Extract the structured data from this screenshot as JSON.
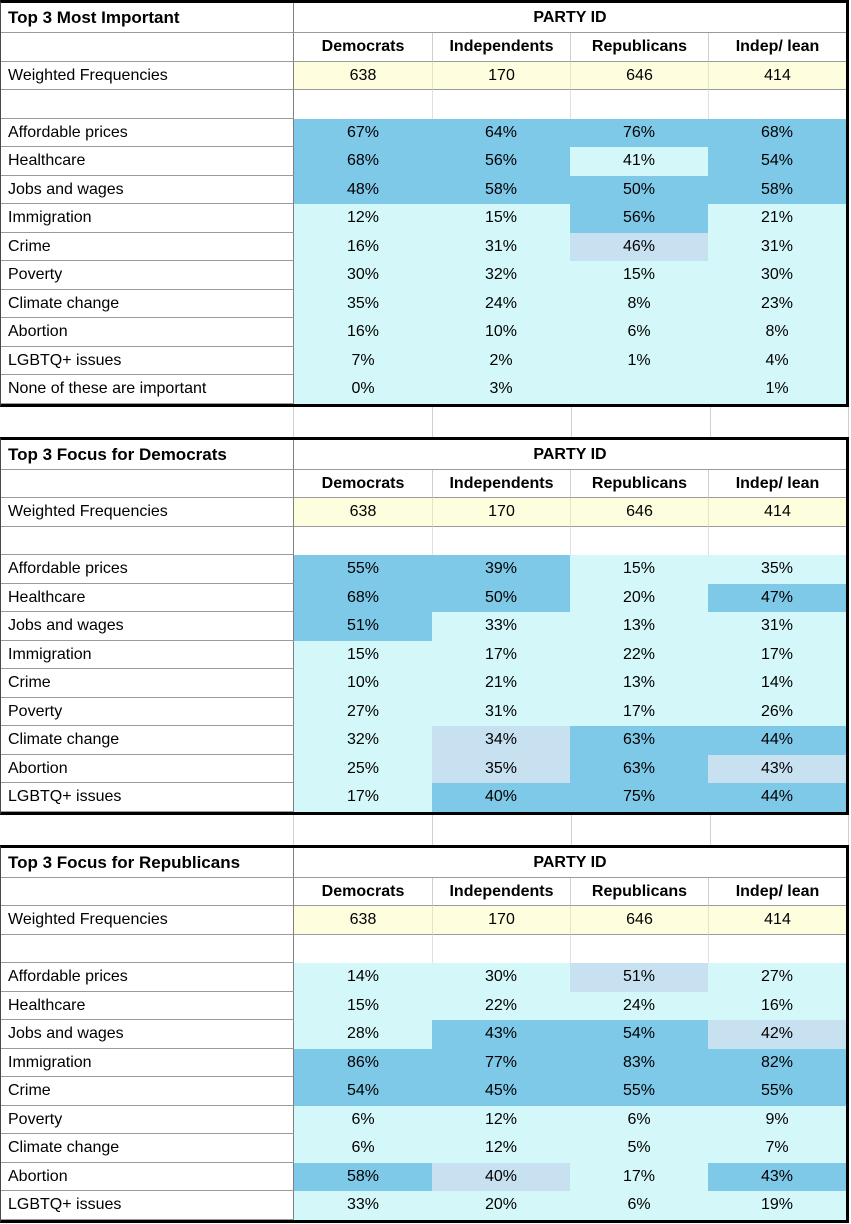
{
  "party_header": "PARTY ID",
  "weighted_label": "Weighted Frequencies",
  "columns": [
    "Democrats",
    "Independents",
    "Republicans",
    "Indep/ lean"
  ],
  "legend_colors": {
    "high": "#7EC8E8",
    "mid": "#C8E1F0",
    "low": "#D4F7F9",
    "weighted": "#FEFEDF"
  },
  "chart_data": [
    {
      "type": "table",
      "title": "Top 3 Most Important",
      "columns": [
        "Democrats",
        "Independents",
        "Republicans",
        "Indep/ lean"
      ],
      "weighted_frequencies": [
        638,
        170,
        646,
        414
      ],
      "rows": [
        {
          "label": "Affordable prices",
          "values": [
            "67%",
            "64%",
            "76%",
            "68%"
          ],
          "tiers": [
            "high",
            "high",
            "high",
            "high"
          ]
        },
        {
          "label": "Healthcare",
          "values": [
            "68%",
            "56%",
            "41%",
            "54%"
          ],
          "tiers": [
            "high",
            "high",
            "low",
            "high"
          ]
        },
        {
          "label": "Jobs and wages",
          "values": [
            "48%",
            "58%",
            "50%",
            "58%"
          ],
          "tiers": [
            "high",
            "high",
            "high",
            "high"
          ]
        },
        {
          "label": "Immigration",
          "values": [
            "12%",
            "15%",
            "56%",
            "21%"
          ],
          "tiers": [
            "low",
            "low",
            "high",
            "low"
          ]
        },
        {
          "label": "Crime",
          "values": [
            "16%",
            "31%",
            "46%",
            "31%"
          ],
          "tiers": [
            "low",
            "low",
            "mid",
            "low"
          ]
        },
        {
          "label": "Poverty",
          "values": [
            "30%",
            "32%",
            "15%",
            "30%"
          ],
          "tiers": [
            "low",
            "low",
            "low",
            "low"
          ]
        },
        {
          "label": "Climate change",
          "values": [
            "35%",
            "24%",
            "8%",
            "23%"
          ],
          "tiers": [
            "low",
            "low",
            "low",
            "low"
          ]
        },
        {
          "label": "Abortion",
          "values": [
            "16%",
            "10%",
            "6%",
            "8%"
          ],
          "tiers": [
            "low",
            "low",
            "low",
            "low"
          ]
        },
        {
          "label": "LGBTQ+ issues",
          "values": [
            "7%",
            "2%",
            "1%",
            "4%"
          ],
          "tiers": [
            "low",
            "low",
            "low",
            "low"
          ]
        },
        {
          "label": "None of these are important",
          "values": [
            "0%",
            "3%",
            "",
            "1%"
          ],
          "tiers": [
            "low",
            "low",
            "low",
            "low"
          ]
        }
      ]
    },
    {
      "type": "table",
      "title": "Top 3 Focus for Democrats",
      "columns": [
        "Democrats",
        "Independents",
        "Republicans",
        "Indep/ lean"
      ],
      "weighted_frequencies": [
        638,
        170,
        646,
        414
      ],
      "rows": [
        {
          "label": "Affordable prices",
          "values": [
            "55%",
            "39%",
            "15%",
            "35%"
          ],
          "tiers": [
            "high",
            "high",
            "low",
            "low"
          ]
        },
        {
          "label": "Healthcare",
          "values": [
            "68%",
            "50%",
            "20%",
            "47%"
          ],
          "tiers": [
            "high",
            "high",
            "low",
            "high"
          ]
        },
        {
          "label": "Jobs and wages",
          "values": [
            "51%",
            "33%",
            "13%",
            "31%"
          ],
          "tiers": [
            "high",
            "low",
            "low",
            "low"
          ]
        },
        {
          "label": "Immigration",
          "values": [
            "15%",
            "17%",
            "22%",
            "17%"
          ],
          "tiers": [
            "low",
            "low",
            "low",
            "low"
          ]
        },
        {
          "label": "Crime",
          "values": [
            "10%",
            "21%",
            "13%",
            "14%"
          ],
          "tiers": [
            "low",
            "low",
            "low",
            "low"
          ]
        },
        {
          "label": "Poverty",
          "values": [
            "27%",
            "31%",
            "17%",
            "26%"
          ],
          "tiers": [
            "low",
            "low",
            "low",
            "low"
          ]
        },
        {
          "label": "Climate change",
          "values": [
            "32%",
            "34%",
            "63%",
            "44%"
          ],
          "tiers": [
            "low",
            "mid",
            "high",
            "high"
          ]
        },
        {
          "label": "Abortion",
          "values": [
            "25%",
            "35%",
            "63%",
            "43%"
          ],
          "tiers": [
            "low",
            "mid",
            "high",
            "mid"
          ]
        },
        {
          "label": "LGBTQ+ issues",
          "values": [
            "17%",
            "40%",
            "75%",
            "44%"
          ],
          "tiers": [
            "low",
            "high",
            "high",
            "high"
          ]
        }
      ]
    },
    {
      "type": "table",
      "title": "Top 3 Focus for Republicans",
      "columns": [
        "Democrats",
        "Independents",
        "Republicans",
        "Indep/ lean"
      ],
      "weighted_frequencies": [
        638,
        170,
        646,
        414
      ],
      "rows": [
        {
          "label": "Affordable prices",
          "values": [
            "14%",
            "30%",
            "51%",
            "27%"
          ],
          "tiers": [
            "low",
            "low",
            "mid",
            "low"
          ]
        },
        {
          "label": "Healthcare",
          "values": [
            "15%",
            "22%",
            "24%",
            "16%"
          ],
          "tiers": [
            "low",
            "low",
            "low",
            "low"
          ]
        },
        {
          "label": "Jobs and wages",
          "values": [
            "28%",
            "43%",
            "54%",
            "42%"
          ],
          "tiers": [
            "low",
            "high",
            "high",
            "mid"
          ]
        },
        {
          "label": "Immigration",
          "values": [
            "86%",
            "77%",
            "83%",
            "82%"
          ],
          "tiers": [
            "high",
            "high",
            "high",
            "high"
          ]
        },
        {
          "label": "Crime",
          "values": [
            "54%",
            "45%",
            "55%",
            "55%"
          ],
          "tiers": [
            "high",
            "high",
            "high",
            "high"
          ]
        },
        {
          "label": "Poverty",
          "values": [
            "6%",
            "12%",
            "6%",
            "9%"
          ],
          "tiers": [
            "low",
            "low",
            "low",
            "low"
          ]
        },
        {
          "label": "Climate change",
          "values": [
            "6%",
            "12%",
            "5%",
            "7%"
          ],
          "tiers": [
            "low",
            "low",
            "low",
            "low"
          ]
        },
        {
          "label": "Abortion",
          "values": [
            "58%",
            "40%",
            "17%",
            "43%"
          ],
          "tiers": [
            "high",
            "mid",
            "low",
            "high"
          ]
        },
        {
          "label": "LGBTQ+ issues",
          "values": [
            "33%",
            "20%",
            "6%",
            "19%"
          ],
          "tiers": [
            "low",
            "low",
            "low",
            "low"
          ]
        }
      ]
    }
  ]
}
